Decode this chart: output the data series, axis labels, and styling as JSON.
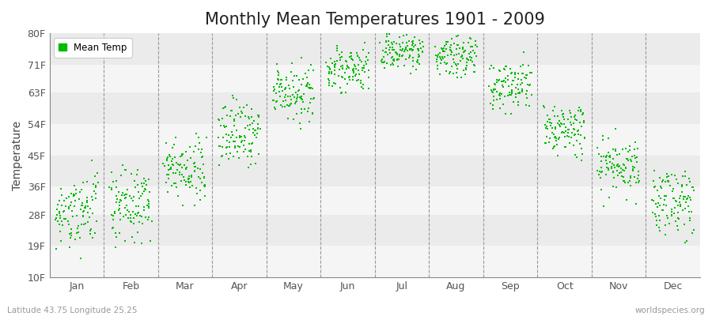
{
  "title": "Monthly Mean Temperatures 1901 - 2009",
  "ylabel": "Temperature",
  "ytick_labels": [
    "10F",
    "19F",
    "28F",
    "36F",
    "45F",
    "54F",
    "63F",
    "71F",
    "80F"
  ],
  "ytick_values": [
    10,
    19,
    28,
    36,
    45,
    54,
    63,
    71,
    80
  ],
  "ylim": [
    10,
    80
  ],
  "xlim": [
    0,
    12
  ],
  "months": [
    "Jan",
    "Feb",
    "Mar",
    "Apr",
    "May",
    "Jun",
    "Jul",
    "Aug",
    "Sep",
    "Oct",
    "Nov",
    "Dec"
  ],
  "month_tick_positions": [
    0.5,
    1.5,
    2.5,
    3.5,
    4.5,
    5.5,
    6.5,
    7.5,
    8.5,
    9.5,
    10.5,
    11.5
  ],
  "month_dividers": [
    1,
    2,
    3,
    4,
    5,
    6,
    7,
    8,
    9,
    10,
    11
  ],
  "dot_color": "#00BB00",
  "background_color": "#ffffff",
  "band_colors_even": "#f5f5f5",
  "band_colors_odd": "#ebebeb",
  "title_fontsize": 15,
  "axis_label_fontsize": 10,
  "tick_fontsize": 9,
  "legend_label": "Mean Temp",
  "footer_left": "Latitude 43.75 Longitude 25.25",
  "footer_right": "worldspecies.org",
  "n_years": 109,
  "monthly_mean_temps_F": [
    28.5,
    31.5,
    41.0,
    51.5,
    62.5,
    70.0,
    74.5,
    73.5,
    64.5,
    53.0,
    41.0,
    31.5
  ],
  "monthly_std_F": [
    5.0,
    5.0,
    4.5,
    4.5,
    4.0,
    3.0,
    2.5,
    3.0,
    4.0,
    4.0,
    4.5,
    5.0
  ]
}
